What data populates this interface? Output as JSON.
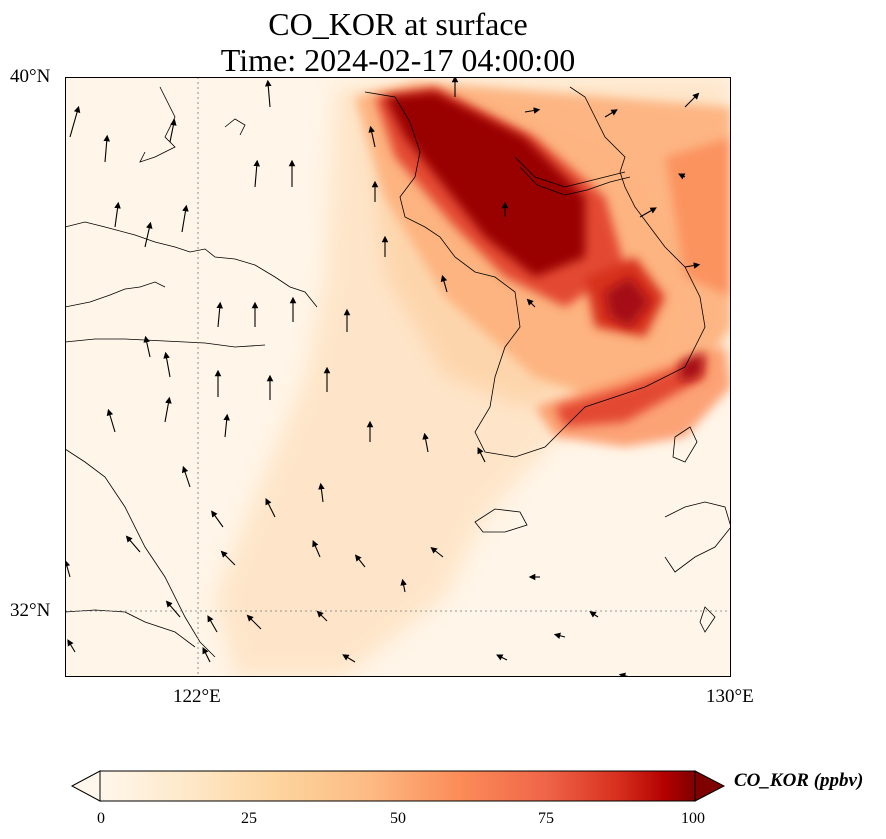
{
  "title": {
    "line1": "CO_KOR at surface",
    "line2": "Time: 2024-02-17 04:00:00"
  },
  "map": {
    "variable": "CO_KOR",
    "units": "ppbv",
    "lon_range": [
      120,
      130
    ],
    "lat_range": [
      31,
      40
    ],
    "gridlines": {
      "lon": [
        122
      ],
      "lat": [
        32
      ],
      "style": "dotted"
    },
    "lon_tick_labels": [
      "122°E",
      "130°E"
    ],
    "lat_tick_labels": [
      "40°N",
      "32°N"
    ],
    "colormap": "OrRd",
    "colors": {
      "low": "#fff7ec",
      "mid": "#fdbb84",
      "high": "#7f0000",
      "coast": "#000000"
    }
  },
  "colorbar": {
    "label": "CO_KOR (ppbv)",
    "min": 0,
    "max": 100,
    "ticks": [
      "0",
      "25",
      "50",
      "75",
      "100"
    ],
    "extend": "both"
  }
}
